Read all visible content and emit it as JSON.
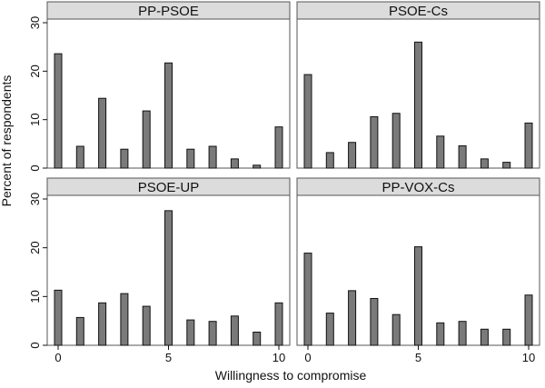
{
  "chart_data": {
    "type": "bar",
    "layout": "2x2 facets",
    "xlabel": "Willingness to compromise",
    "ylabel": "Percent of respondents",
    "x": [
      0,
      1,
      2,
      3,
      4,
      5,
      6,
      7,
      8,
      9,
      10
    ],
    "xticks": [
      "0",
      "5",
      "10"
    ],
    "yticks": [
      "0",
      "10",
      "20",
      "30"
    ],
    "xlim": [
      -0.5,
      10.5
    ],
    "ylim": [
      0,
      30
    ],
    "panels": [
      {
        "title": "PP-PSOE",
        "values": [
          23.6,
          4.5,
          14.4,
          3.9,
          11.8,
          21.7,
          3.9,
          4.5,
          1.9,
          0.6,
          8.5
        ]
      },
      {
        "title": "PSOE-Cs",
        "values": [
          19.3,
          3.2,
          5.3,
          10.6,
          11.3,
          26.0,
          6.6,
          4.6,
          1.9,
          1.2,
          9.3
        ]
      },
      {
        "title": "PSOE-UP",
        "values": [
          11.3,
          5.7,
          8.7,
          10.6,
          8.0,
          27.6,
          5.2,
          4.9,
          6.0,
          2.7,
          8.7
        ]
      },
      {
        "title": "PP-VOX-Cs",
        "values": [
          18.9,
          6.6,
          11.2,
          9.6,
          6.3,
          20.2,
          4.6,
          4.9,
          3.3,
          3.3,
          10.3
        ]
      }
    ]
  }
}
